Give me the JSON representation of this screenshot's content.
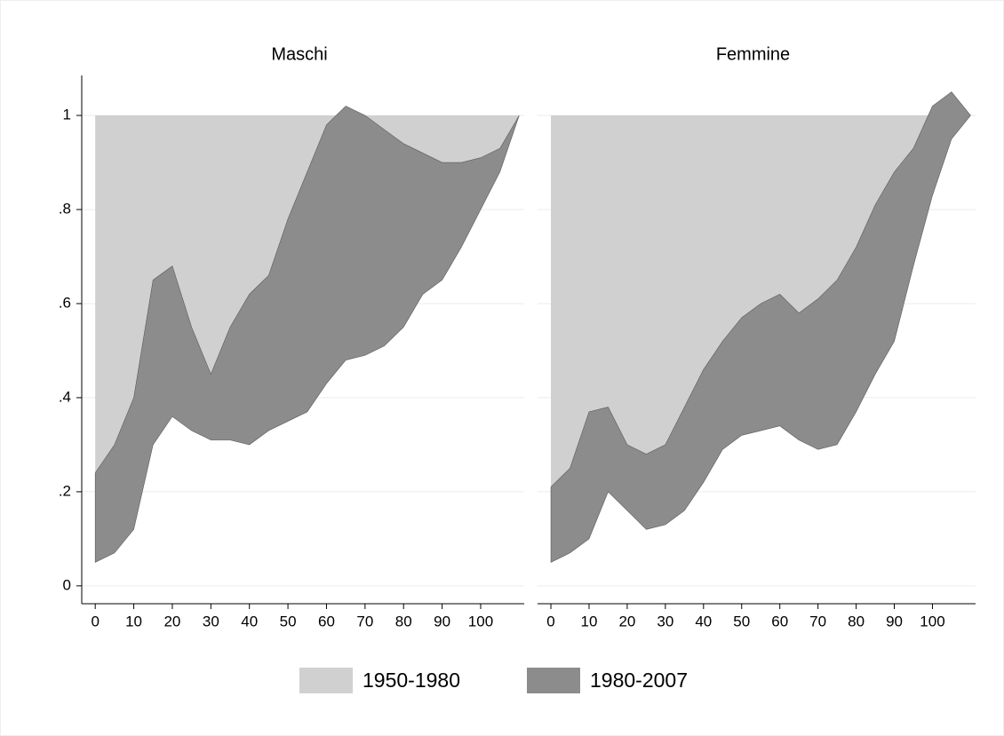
{
  "chart_data": {
    "type": "area",
    "x": [
      0,
      5,
      10,
      15,
      20,
      25,
      30,
      35,
      40,
      45,
      50,
      55,
      60,
      65,
      70,
      75,
      80,
      85,
      90,
      95,
      100,
      105,
      110
    ],
    "xlim": [
      -3.5,
      111.3
    ],
    "xticks": [
      0,
      10,
      20,
      30,
      40,
      50,
      60,
      70,
      80,
      90,
      100
    ],
    "ylim": [
      -0.038,
      1.085
    ],
    "yticks": [
      0,
      {
        "value": 0.2,
        "label": ".2"
      },
      {
        "value": 0.4,
        "label": ".4"
      },
      {
        "value": 0.6,
        "label": ".6"
      },
      {
        "value": 0.8,
        "label": ".8"
      },
      1
    ],
    "baseline": 1,
    "grid": true,
    "legend": [
      {
        "name": "1950-1980",
        "color": "#d0d0d0"
      },
      {
        "name": "1980-2007",
        "color": "#8c8c8c"
      }
    ],
    "panels": [
      {
        "title": "Maschi",
        "series": [
          {
            "values": [
              0.24,
              0.3,
              0.4,
              0.65,
              0.68,
              0.55,
              0.45,
              0.55,
              0.62,
              0.66,
              0.78,
              0.88,
              0.98,
              1.02,
              1.0,
              0.97,
              0.94,
              0.92,
              0.9,
              0.9,
              0.91,
              0.93,
              1.0
            ]
          },
          {
            "values": [
              0.05,
              0.07,
              0.12,
              0.3,
              0.36,
              0.33,
              0.31,
              0.31,
              0.3,
              0.33,
              0.35,
              0.37,
              0.43,
              0.48,
              0.49,
              0.51,
              0.55,
              0.62,
              0.65,
              0.72,
              0.8,
              0.88,
              1.0
            ]
          }
        ]
      },
      {
        "title": "Femmine",
        "series": [
          {
            "values": [
              0.21,
              0.25,
              0.37,
              0.38,
              0.3,
              0.28,
              0.3,
              0.38,
              0.46,
              0.52,
              0.57,
              0.6,
              0.62,
              0.58,
              0.61,
              0.65,
              0.72,
              0.81,
              0.88,
              0.93,
              1.02,
              1.05,
              1.0
            ]
          },
          {
            "values": [
              0.05,
              0.07,
              0.1,
              0.2,
              0.16,
              0.12,
              0.13,
              0.16,
              0.22,
              0.29,
              0.32,
              0.33,
              0.34,
              0.31,
              0.29,
              0.3,
              0.37,
              0.45,
              0.52,
              0.68,
              0.83,
              0.95,
              1.0
            ]
          }
        ]
      }
    ]
  }
}
